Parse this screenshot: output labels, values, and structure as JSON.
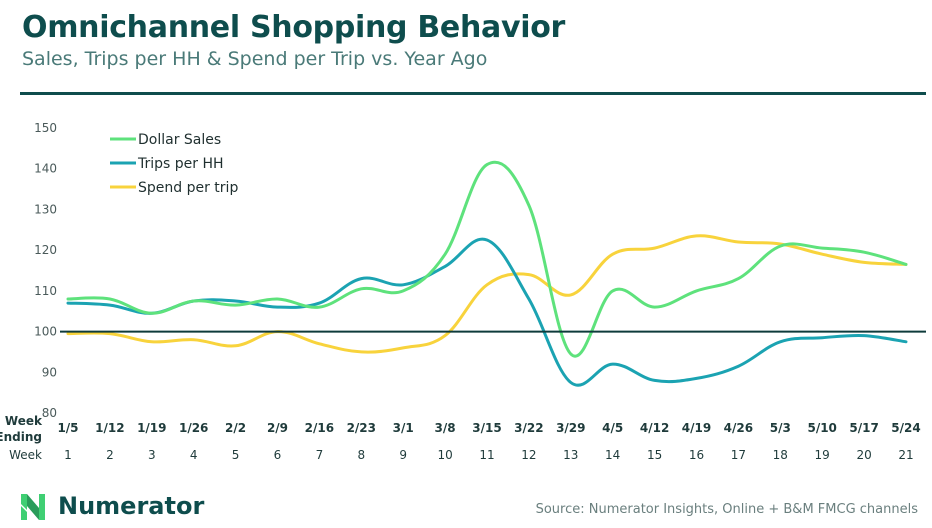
{
  "header": {
    "title": "Omnichannel Shopping Behavior",
    "subtitle": "Sales, Trips per HH & Spend per Trip vs. Year Ago"
  },
  "footer": {
    "brand": "Numerator",
    "source": "Source: Numerator Insights, Online + B&M  FMCG channels"
  },
  "chart_data": {
    "type": "line",
    "title": "",
    "xlabel": "",
    "ylabel": "",
    "ylim": [
      80,
      150
    ],
    "yticks": [
      80,
      90,
      100,
      110,
      120,
      130,
      140,
      150
    ],
    "grid": false,
    "legend_position": "top-left",
    "reference_line": 100,
    "row_labels": {
      "week_ending": "Week Ending",
      "week": "Week"
    },
    "categories": [
      "1/5",
      "1/12",
      "1/19",
      "1/26",
      "2/2",
      "2/9",
      "2/16",
      "2/23",
      "3/1",
      "3/8",
      "3/15",
      "3/22",
      "3/29",
      "4/5",
      "4/12",
      "4/19",
      "4/26",
      "5/3",
      "5/10",
      "5/17",
      "5/24"
    ],
    "week_numbers": [
      "1",
      "2",
      "3",
      "4",
      "5",
      "6",
      "7",
      "8",
      "9",
      "10",
      "11",
      "12",
      "13",
      "14",
      "15",
      "16",
      "17",
      "18",
      "19",
      "20",
      "21"
    ],
    "series": [
      {
        "name": "Dollar Sales",
        "color": "#5ee27c",
        "values": [
          108,
          108,
          104.5,
          107.5,
          106.5,
          108,
          106,
          110.5,
          110,
          119,
          141,
          131,
          94.5,
          110,
          106,
          110,
          113,
          121,
          120.5,
          119.5,
          116.5
        ]
      },
      {
        "name": "Trips per HH",
        "color": "#1ba3b2",
        "values": [
          107,
          106.5,
          104.5,
          107.5,
          107.5,
          106,
          107,
          113,
          111.5,
          116,
          122.5,
          108,
          87.5,
          92,
          88,
          88.5,
          91.5,
          97.5,
          98.5,
          99,
          97.5
        ]
      },
      {
        "name": "Spend per trip",
        "color": "#f8d33c",
        "values": [
          99.5,
          99.5,
          97.5,
          98,
          96.5,
          100,
          97,
          95,
          96,
          99,
          111.5,
          114,
          109,
          119,
          120.5,
          123.5,
          122,
          121.5,
          119,
          117,
          116.5
        ]
      }
    ],
    "reference_line_color": "#0e3b3b"
  }
}
